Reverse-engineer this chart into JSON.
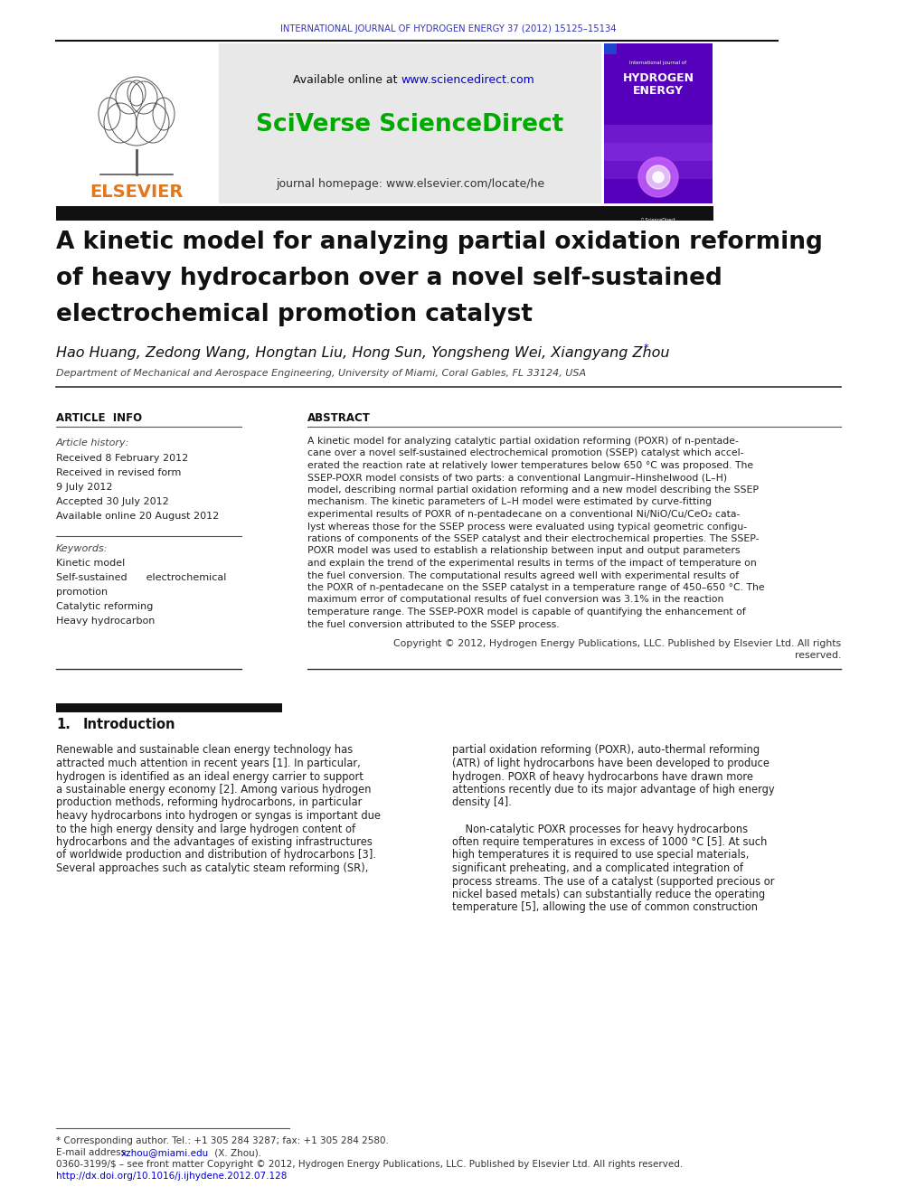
{
  "journal_header": "INTERNATIONAL JOURNAL OF HYDROGEN ENERGY 37 (2012) 15125–15134",
  "available_online_text": "Available online at ",
  "sciencedirect_url": "www.sciencedirect.com",
  "sciverse_text": "SciVerse ScienceDirect",
  "journal_homepage_text": "journal homepage: www.elsevier.com/locate/he",
  "paper_title_line1": "A kinetic model for analyzing partial oxidation reforming",
  "paper_title_line2": "of heavy hydrocarbon over a novel self-sustained",
  "paper_title_line3": "electrochemical promotion catalyst",
  "authors": "Hao Huang, Zedong Wang, Hongtan Liu, Hong Sun, Yongsheng Wei, Xiangyang Zhou",
  "authors_star": "*",
  "affiliation": "Department of Mechanical and Aerospace Engineering, University of Miami, Coral Gables, FL 33124, USA",
  "article_info_title": "ARTICLE INFO",
  "article_history_title": "Article history:",
  "received_text": "Received 8 February 2012",
  "received_revised_text": "Received in revised form",
  "received_revised_date": "9 July 2012",
  "accepted_text": "Accepted 30 July 2012",
  "available_online_article": "Available online 20 August 2012",
  "keywords_title": "Keywords:",
  "keyword1": "Kinetic model",
  "keyword2": "Self-sustained      electrochemical",
  "keyword2b": "promotion",
  "keyword3": "Catalytic reforming",
  "keyword4": "Heavy hydrocarbon",
  "abstract_title": "ABSTRACT",
  "copyright_line1": "Copyright © 2012, Hydrogen Energy Publications, LLC. Published by Elsevier Ltd. All rights",
  "copyright_line2": "reserved.",
  "section1_number": "1.",
  "section1_name": "Introduction",
  "intro_left_lines": [
    "Renewable and sustainable clean energy technology has",
    "attracted much attention in recent years [1]. In particular,",
    "hydrogen is identified as an ideal energy carrier to support",
    "a sustainable energy economy [2]. Among various hydrogen",
    "production methods, reforming hydrocarbons, in particular",
    "heavy hydrocarbons into hydrogen or syngas is important due",
    "to the high energy density and large hydrogen content of",
    "hydrocarbons and the advantages of existing infrastructures",
    "of worldwide production and distribution of hydrocarbons [3].",
    "Several approaches such as catalytic steam reforming (SR),"
  ],
  "intro_right_lines": [
    "partial oxidation reforming (POXR), auto-thermal reforming",
    "(ATR) of light hydrocarbons have been developed to produce",
    "hydrogen. POXR of heavy hydrocarbons have drawn more",
    "attentions recently due to its major advantage of high energy",
    "density [4].",
    "",
    "    Non-catalytic POXR processes for heavy hydrocarbons",
    "often require temperatures in excess of 1000 °C [5]. At such",
    "high temperatures it is required to use special materials,",
    "significant preheating, and a complicated integration of",
    "process streams. The use of a catalyst (supported precious or",
    "nickel based metals) can substantially reduce the operating",
    "temperature [5], allowing the use of common construction"
  ],
  "abstract_lines": [
    "A kinetic model for analyzing catalytic partial oxidation reforming (POXR) of n-pentade-",
    "cane over a novel self-sustained electrochemical promotion (SSEP) catalyst which accel-",
    "erated the reaction rate at relatively lower temperatures below 650 °C was proposed. The",
    "SSEP-POXR model consists of two parts: a conventional Langmuir–Hinshelwood (L–H)",
    "model, describing normal partial oxidation reforming and a new model describing the SSEP",
    "mechanism. The kinetic parameters of L–H model were estimated by curve-fitting",
    "experimental results of POXR of n-pentadecane on a conventional Ni/NiO/Cu/CeO₂ cata-",
    "lyst whereas those for the SSEP process were evaluated using typical geometric configu-",
    "rations of components of the SSEP catalyst and their electrochemical properties. The SSEP-",
    "POXR model was used to establish a relationship between input and output parameters",
    "and explain the trend of the experimental results in terms of the impact of temperature on",
    "the fuel conversion. The computational results agreed well with experimental results of",
    "the POXR of n-pentadecane on the SSEP catalyst in a temperature range of 450–650 °C. The",
    "maximum error of computational results of fuel conversion was 3.1% in the reaction",
    "temperature range. The SSEP-POXR model is capable of quantifying the enhancement of",
    "the fuel conversion attributed to the SSEP process."
  ],
  "footnote_line1": "* Corresponding author. Tel.: +1 305 284 3287; fax: +1 305 284 2580.",
  "footnote_email_label": "E-mail address: ",
  "footnote_email": "xzhou@miami.edu",
  "footnote_email_suffix": " (X. Zhou).",
  "footnote_issn": "0360-3199/$ – see front matter Copyright © 2012, Hydrogen Energy Publications, LLC. Published by Elsevier Ltd. All rights reserved.",
  "footnote_doi": "http://dx.doi.org/10.1016/j.ijhydene.2012.07.128",
  "bg_color": "#ffffff",
  "journal_header_color": "#3333bb",
  "sciverse_color": "#00aa00",
  "url_color": "#0000cc",
  "black_bar_color": "#111111",
  "elsevier_orange": "#e07820",
  "gray_box_color": "#e8e8e8"
}
